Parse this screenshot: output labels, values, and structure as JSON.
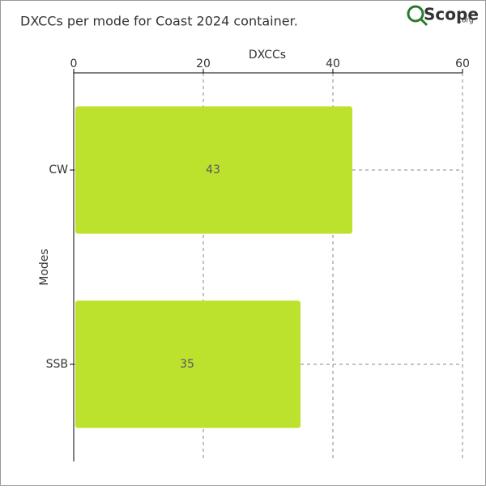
{
  "chart_data": {
    "type": "barh",
    "title": "DXCCs per mode for Coast 2024 container.",
    "x_label": "DXCCs",
    "y_label": "Modes",
    "categories": [
      "CW",
      "SSB"
    ],
    "values": [
      43,
      35
    ],
    "color": "#bde22e",
    "xlim": [
      0,
      60
    ],
    "xticks": [
      0,
      20,
      40,
      60
    ],
    "grid": true
  },
  "logo": {
    "text": "Scope",
    "suffix": ".org"
  }
}
